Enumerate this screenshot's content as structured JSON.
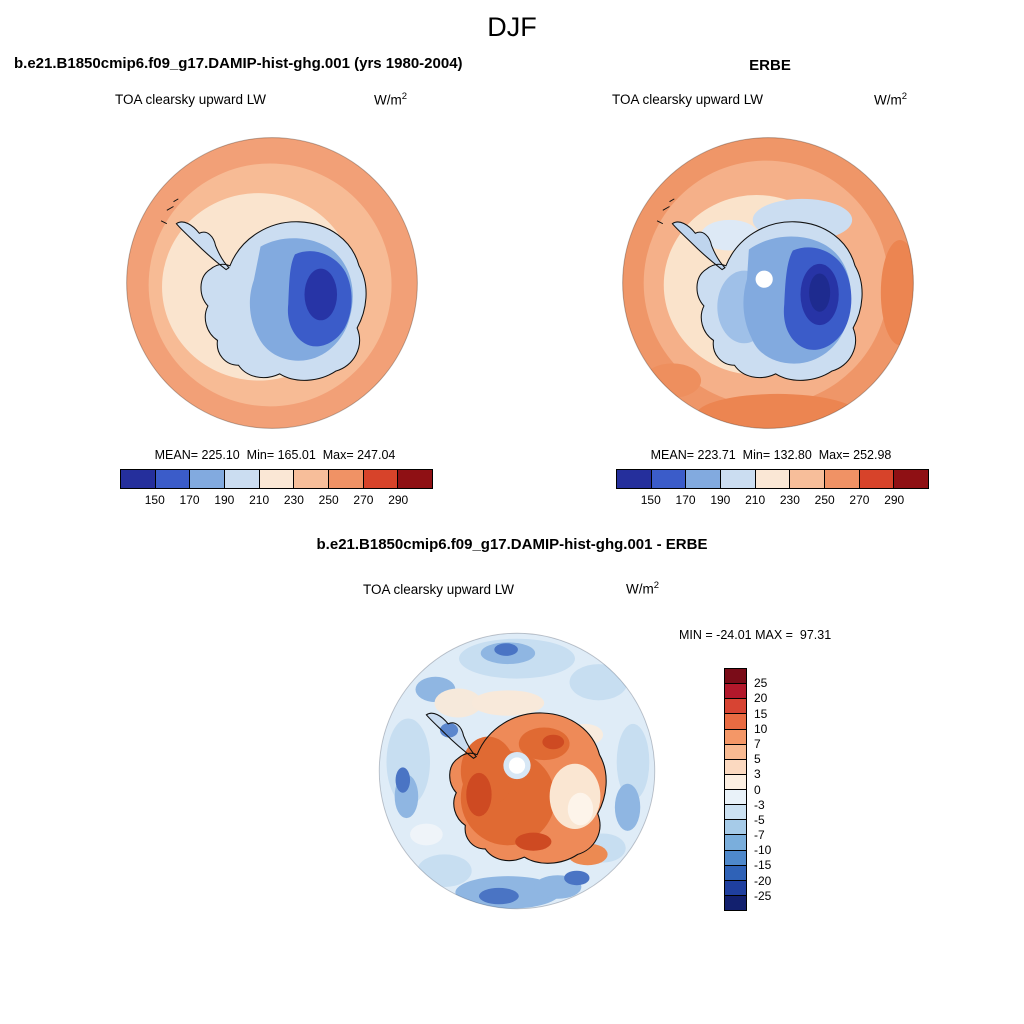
{
  "title": "DJF",
  "panels": {
    "model": {
      "header": "b.e21.B1850cmip6.f09_g17.DAMIP-hist-ghg.001 (yrs 1980-2004)",
      "subtitle": "TOA clearsky upward LW",
      "units_base": "W/m",
      "units_exponent": "2",
      "stats": "MEAN= 225.10  Min= 165.01  Max= 247.04"
    },
    "erbe": {
      "header": "ERBE",
      "subtitle": "TOA clearsky upward LW",
      "units_base": "W/m",
      "units_exponent": "2",
      "stats": "MEAN= 223.71  Min= 132.80  Max= 252.98"
    },
    "diff": {
      "header": "b.e21.B1850cmip6.f09_g17.DAMIP-hist-ghg.001 - ERBE",
      "subtitle": "TOA clearsky upward LW",
      "units_base": "W/m",
      "units_exponent": "2",
      "stats": "MIN = -24.01 MAX =  97.31"
    }
  },
  "colorbars": {
    "main": {
      "ticks": [
        "150",
        "170",
        "190",
        "210",
        "230",
        "250",
        "270",
        "290"
      ],
      "colors": [
        "#252F9C",
        "#3B5CC9",
        "#82AADF",
        "#CBDDF1",
        "#FAE7D5",
        "#F7BE9A",
        "#F09265",
        "#D7432A",
        "#8F1014"
      ]
    },
    "diff": {
      "ticks": [
        "25",
        "20",
        "15",
        "10",
        "7",
        "5",
        "3",
        "0",
        "-3",
        "-5",
        "-7",
        "-10",
        "-15",
        "-20",
        "-25"
      ],
      "colors": [
        "#7A0C18",
        "#B2182B",
        "#D74433",
        "#E96B42",
        "#F49767",
        "#F8BA92",
        "#FBD9C0",
        "#FCEFE2",
        "#E9F2F9",
        "#CBE1F2",
        "#A6CBE8",
        "#7AAEDC",
        "#4E88CB",
        "#2F62B7",
        "#1F3F9F",
        "#12206E"
      ]
    }
  },
  "chart_data": [
    {
      "type": "heatmap",
      "subtype": "south-polar-stereographic-map",
      "season": "DJF",
      "title": "b.e21.B1850cmip6.f09_g17.DAMIP-hist-ghg.001 (yrs 1980-2004)",
      "variable": "TOA clearsky upward LW",
      "units": "W/m^2",
      "stats": {
        "mean": 225.1,
        "min": 165.01,
        "max": 247.04
      },
      "contour_levels": [
        150,
        170,
        190,
        210,
        230,
        250,
        270,
        290
      ],
      "palette": "blue-white-red diverging",
      "legend_position": "bottom",
      "description": "Low values (blues, 150-210 W/m^2) over the Antarctic continent with the minimum over East Antarctica; high values (salmon/orange, 230-260 W/m^2) over the surrounding Southern Ocean."
    },
    {
      "type": "heatmap",
      "subtype": "south-polar-stereographic-map",
      "season": "DJF",
      "title": "ERBE",
      "variable": "TOA clearsky upward LW",
      "units": "W/m^2",
      "stats": {
        "mean": 223.71,
        "min": 132.8,
        "max": 252.98
      },
      "contour_levels": [
        150,
        170,
        190,
        210,
        230,
        250,
        270,
        290
      ],
      "palette": "blue-white-red diverging",
      "legend_position": "bottom",
      "description": "Observed ERBE field; blues over Antarctica with a white missing-data hole at the pole, salmon/orange ocean values reaching the 250-270 bin near the map edge."
    },
    {
      "type": "heatmap",
      "subtype": "south-polar-stereographic-map",
      "season": "DJF",
      "title": "b.e21.B1850cmip6.f09_g17.DAMIP-hist-ghg.001 - ERBE",
      "variable": "TOA clearsky upward LW difference",
      "units": "W/m^2",
      "stats": {
        "min": -24.01,
        "max": 97.31
      },
      "contour_levels": [
        -25,
        -20,
        -15,
        -10,
        -7,
        -5,
        -3,
        0,
        3,
        5,
        7,
        10,
        15,
        20,
        25
      ],
      "palette": "red-positive / blue-negative diverging",
      "legend_position": "right",
      "description": "Positive differences (orange/red, +3 to +25 W/m^2) over the Antarctic continent; mostly weak negative differences (pale to medium blues, 0 to -15 W/m^2) over the surrounding ocean, with a white missing-data hole at the pole."
    }
  ]
}
